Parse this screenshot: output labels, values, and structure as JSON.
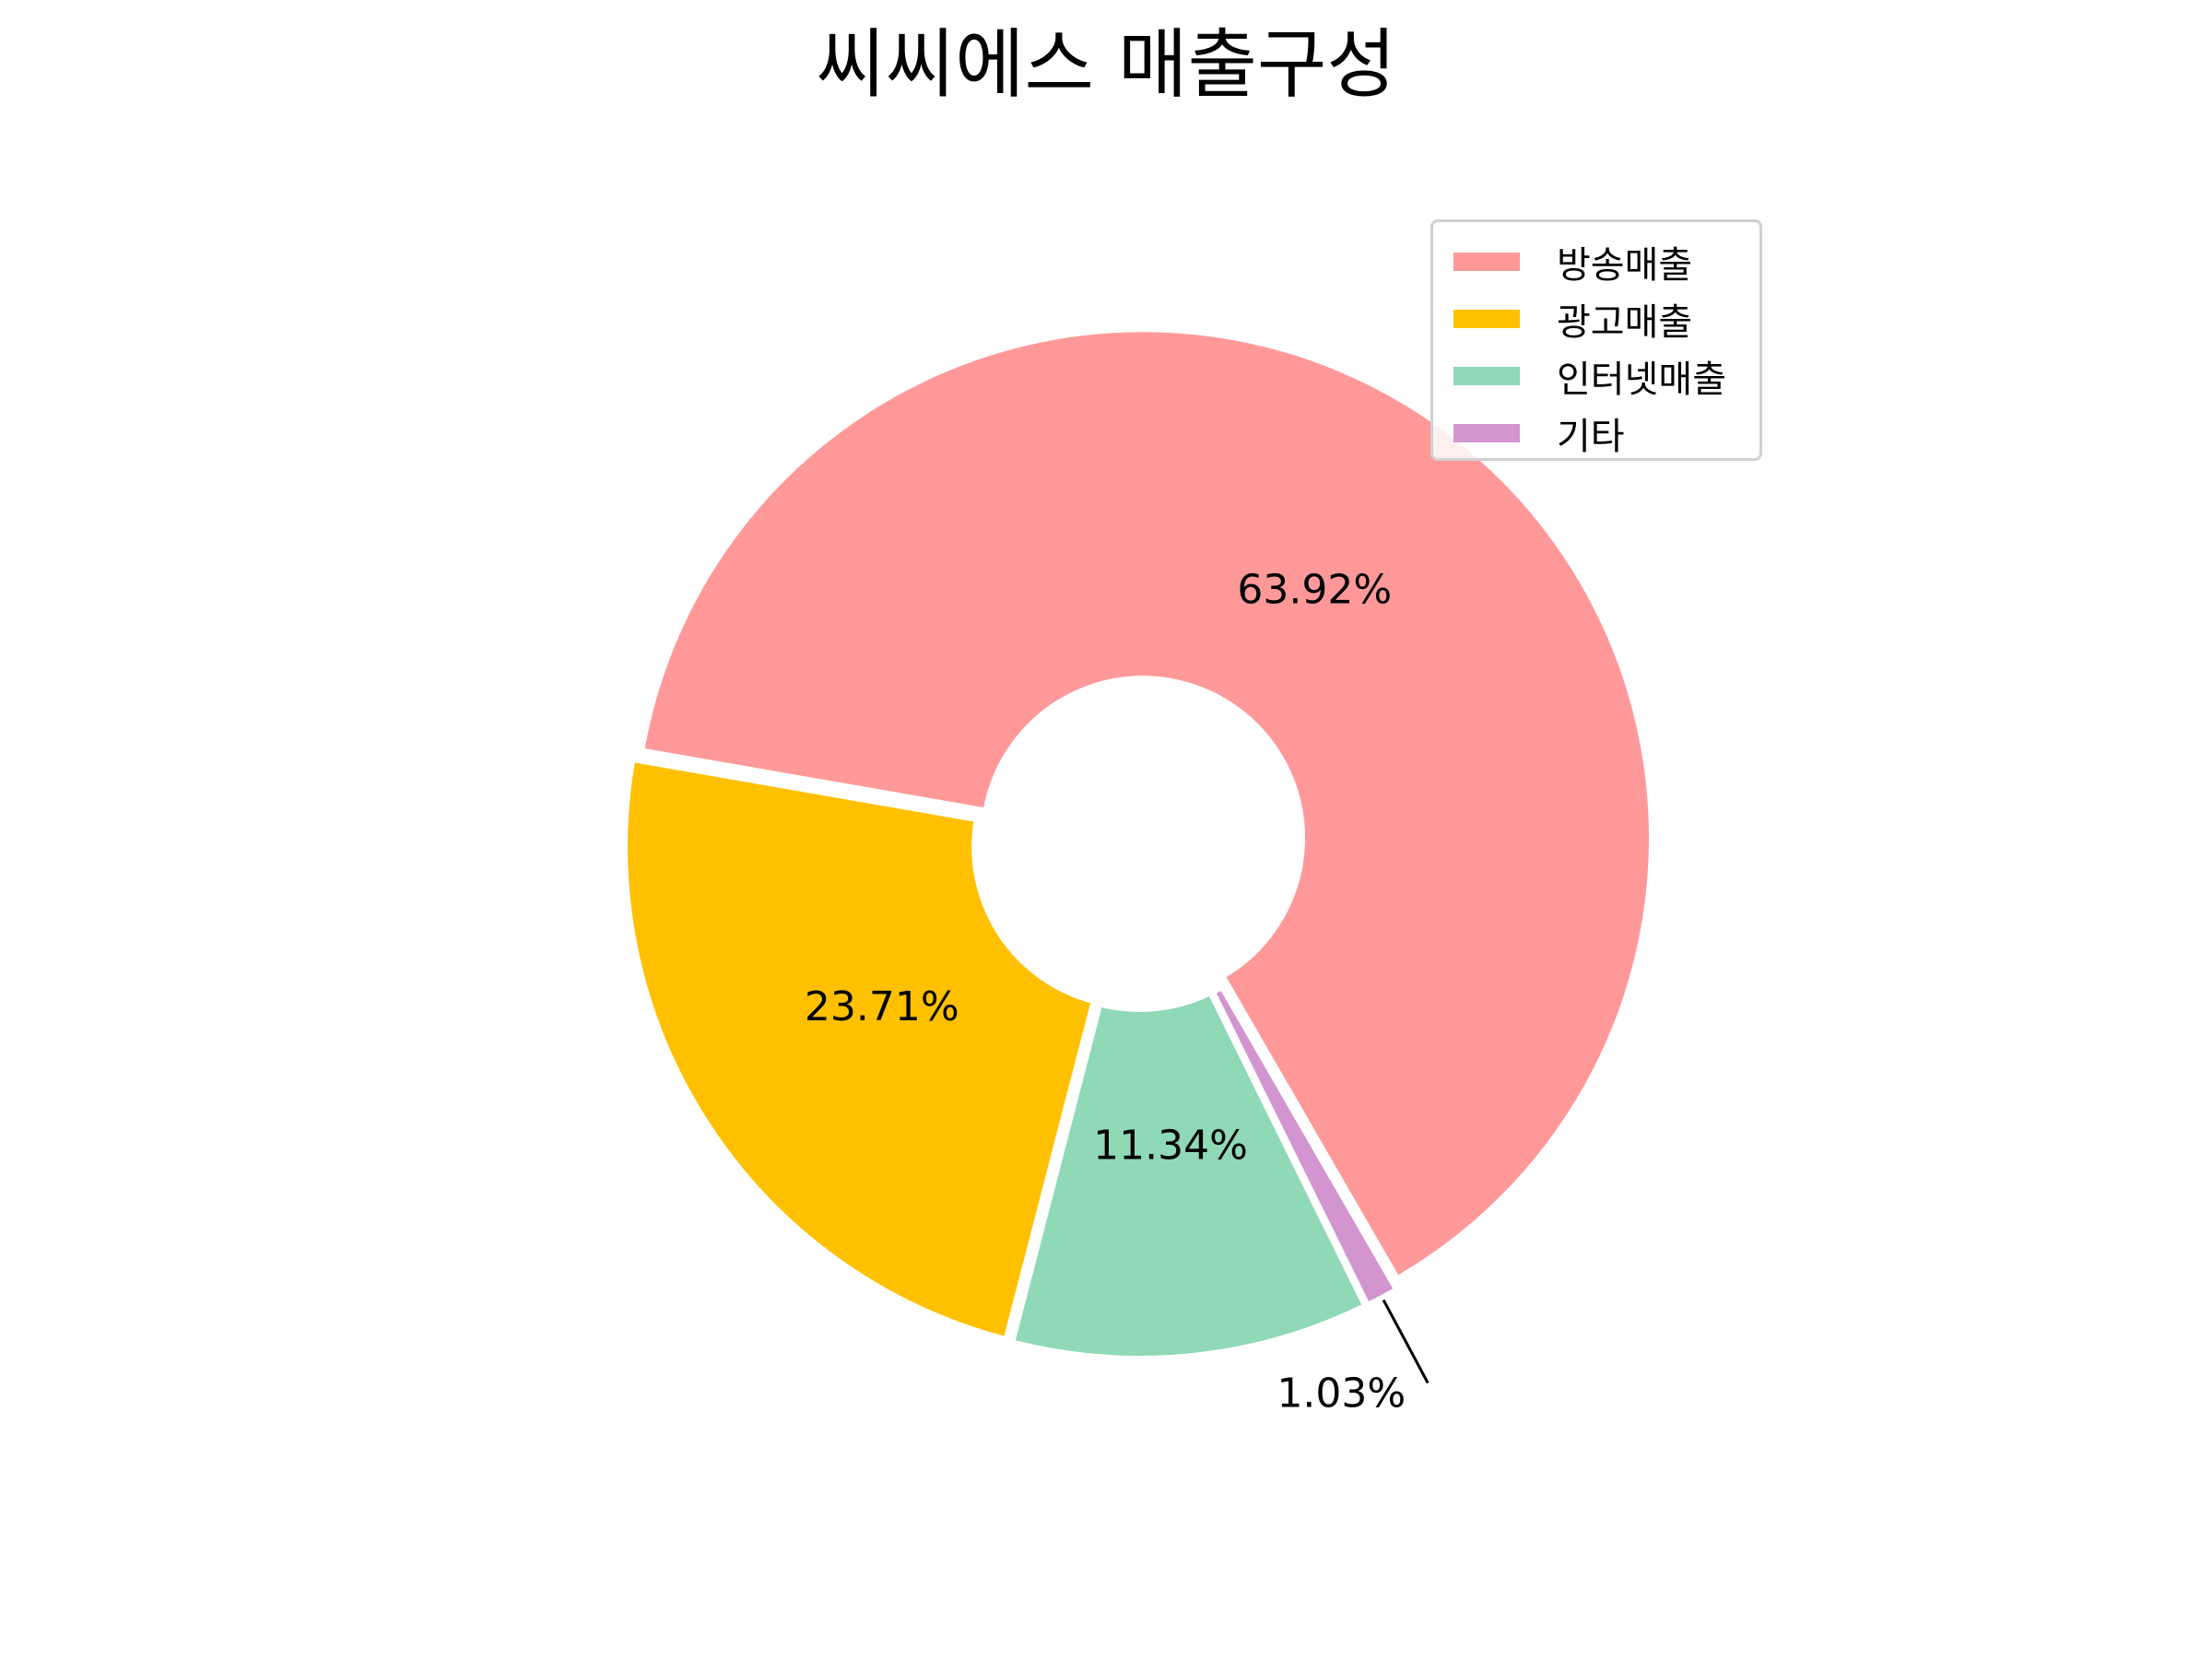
{
  "chart_data": {
    "type": "pie",
    "style": "donut",
    "title": "씨씨에스 매출구성",
    "categories": [
      "방송매출",
      "광고매출",
      "인터넷매출",
      "기타"
    ],
    "values": [
      63.92,
      23.71,
      11.34,
      1.03
    ],
    "value_labels": [
      "63.92%",
      "23.71%",
      "11.34%",
      "1.03%"
    ],
    "colors": [
      "#ff9999",
      "#ffc000",
      "#8fd9b6",
      "#d395d0"
    ],
    "legend": {
      "placement": "top-right",
      "entries": [
        "방송매출",
        "광고매출",
        "인터넷매출",
        "기타"
      ]
    }
  }
}
